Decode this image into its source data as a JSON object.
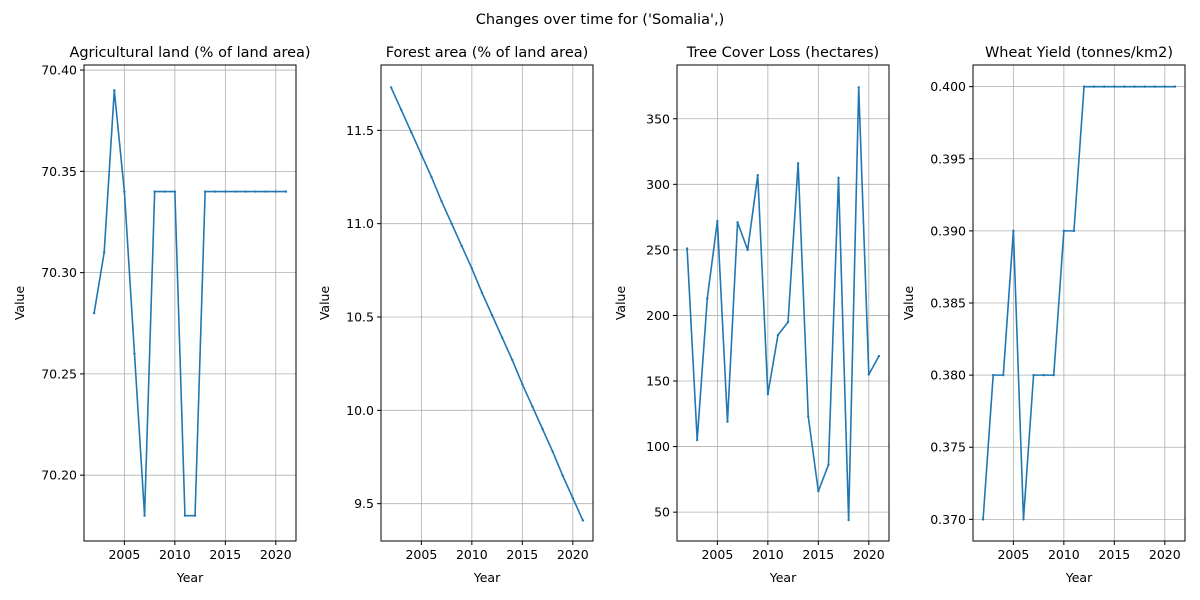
{
  "figure_title": "Changes over time for ('Somalia',)",
  "colors": {
    "series": "#1f77b4",
    "grid": "#b0b0b0",
    "axis": "#000000"
  },
  "chart_data": [
    {
      "type": "line",
      "title": "Agricultural land (% of land area)",
      "xlabel": "Year",
      "ylabel": "Value",
      "grid": true,
      "xlim": [
        2001,
        2022
      ],
      "ylim": [
        70.1675,
        70.4025
      ],
      "xticks": [
        2005,
        2010,
        2015,
        2020
      ],
      "yticks": [
        70.2,
        70.25,
        70.3,
        70.35,
        70.4
      ],
      "ytick_labels": [
        "70.20",
        "70.25",
        "70.30",
        "70.35",
        "70.40"
      ],
      "x": [
        2002,
        2003,
        2004,
        2005,
        2006,
        2007,
        2008,
        2009,
        2010,
        2011,
        2012,
        2013,
        2014,
        2015,
        2016,
        2017,
        2018,
        2019,
        2020,
        2021
      ],
      "y": [
        70.28,
        70.31,
        70.39,
        70.34,
        70.26,
        70.18,
        70.34,
        70.34,
        70.34,
        70.18,
        70.18,
        70.34,
        70.34,
        70.34,
        70.34,
        70.34,
        70.34,
        70.34,
        70.34,
        70.34
      ]
    },
    {
      "type": "line",
      "title": "Forest area (% of land area)",
      "xlabel": "Year",
      "ylabel": "Value",
      "grid": true,
      "xlim": [
        2001,
        2022
      ],
      "ylim": [
        9.3,
        11.85
      ],
      "xticks": [
        2005,
        2010,
        2015,
        2020
      ],
      "yticks": [
        9.5,
        10.0,
        10.5,
        11.0,
        11.5
      ],
      "ytick_labels": [
        "9.5",
        "10.0",
        "10.5",
        "11.0",
        "11.5"
      ],
      "x": [
        2002,
        2003,
        2004,
        2005,
        2006,
        2007,
        2008,
        2009,
        2010,
        2011,
        2012,
        2013,
        2014,
        2015,
        2016,
        2017,
        2018,
        2019,
        2020,
        2021
      ],
      "y": [
        11.73,
        11.61,
        11.49,
        11.37,
        11.25,
        11.12,
        11.0,
        10.88,
        10.76,
        10.63,
        10.51,
        10.39,
        10.27,
        10.14,
        10.02,
        9.9,
        9.78,
        9.65,
        9.53,
        9.41
      ]
    },
    {
      "type": "line",
      "title": "Tree Cover Loss (hectares)",
      "xlabel": "Year",
      "ylabel": "Value",
      "grid": true,
      "xlim": [
        2001,
        2022
      ],
      "ylim": [
        28,
        391
      ],
      "xticks": [
        2005,
        2010,
        2015,
        2020
      ],
      "yticks": [
        50,
        100,
        150,
        200,
        250,
        300,
        350
      ],
      "ytick_labels": [
        "50",
        "100",
        "150",
        "200",
        "250",
        "300",
        "350"
      ],
      "x": [
        2002,
        2003,
        2004,
        2005,
        2006,
        2007,
        2008,
        2009,
        2010,
        2011,
        2012,
        2013,
        2014,
        2015,
        2016,
        2017,
        2018,
        2019,
        2020,
        2021
      ],
      "y": [
        251,
        105,
        213,
        272,
        119,
        271,
        250,
        307,
        140,
        185,
        195,
        316,
        123,
        66,
        86,
        305,
        44,
        374,
        155,
        169
      ]
    },
    {
      "type": "line",
      "title": "Wheat Yield (tonnes/km2)",
      "xlabel": "Year",
      "ylabel": "Value",
      "grid": true,
      "xlim": [
        2001,
        2022
      ],
      "ylim": [
        0.3685,
        0.4015
      ],
      "xticks": [
        2005,
        2010,
        2015,
        2020
      ],
      "yticks": [
        0.37,
        0.375,
        0.38,
        0.385,
        0.39,
        0.395,
        0.4
      ],
      "ytick_labels": [
        "0.370",
        "0.375",
        "0.380",
        "0.385",
        "0.390",
        "0.395",
        "0.400"
      ],
      "x": [
        2002,
        2003,
        2004,
        2005,
        2006,
        2007,
        2008,
        2009,
        2010,
        2011,
        2012,
        2013,
        2014,
        2015,
        2016,
        2017,
        2018,
        2019,
        2020,
        2021
      ],
      "y": [
        0.37,
        0.38,
        0.38,
        0.39,
        0.37,
        0.38,
        0.38,
        0.38,
        0.39,
        0.39,
        0.4,
        0.4,
        0.4,
        0.4,
        0.4,
        0.4,
        0.4,
        0.4,
        0.4,
        0.4
      ]
    }
  ]
}
